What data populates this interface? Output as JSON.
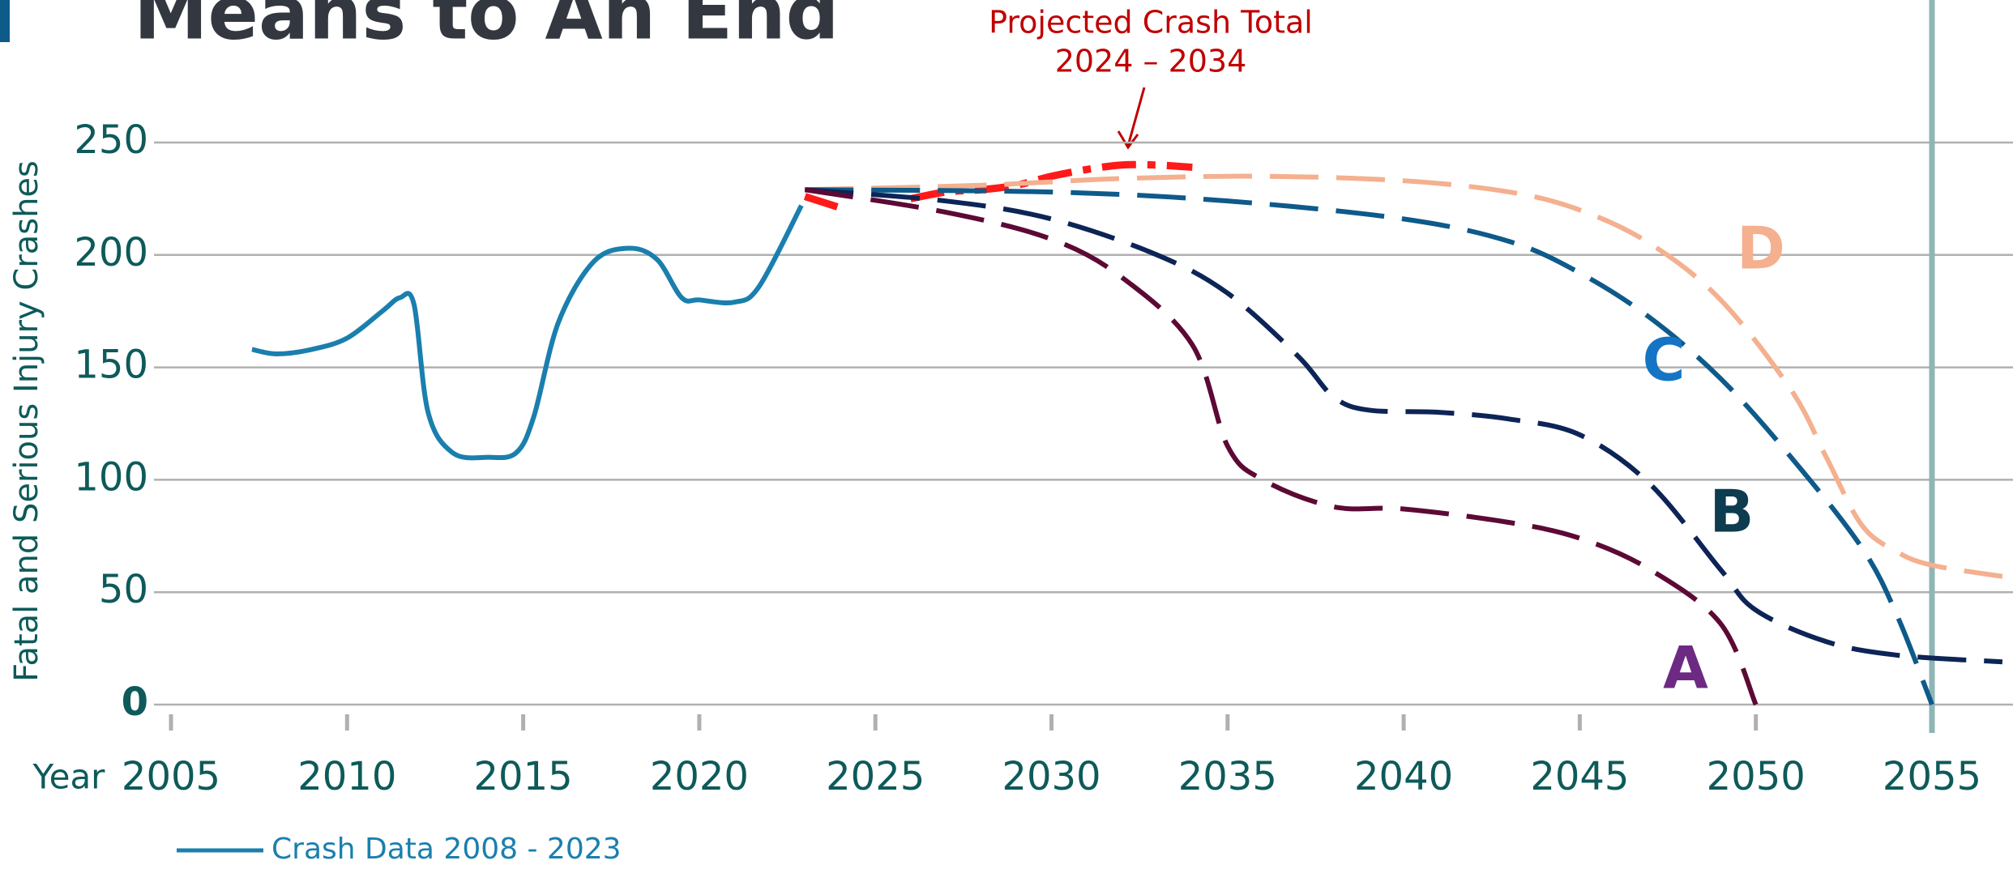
{
  "chart_data": {
    "type": "line",
    "title": "Means to An End",
    "ylabel": "Fatal and Serious Injury Crashes",
    "xlabel": "Year",
    "annotation": [
      "Projected Crash Total",
      "2024 – 2034"
    ],
    "xlim": [
      2005,
      2057
    ],
    "ylim": [
      0,
      250
    ],
    "xticks": [
      2005,
      2010,
      2015,
      2020,
      2025,
      2030,
      2035,
      2040,
      2045,
      2050,
      2055
    ],
    "yticks": [
      0,
      50,
      100,
      150,
      200,
      250
    ],
    "grid": true,
    "vline_x": 2055,
    "series": [
      {
        "name": "Crash Data 2008 - 2023",
        "color": "#1a7fae",
        "style": "solid",
        "legend": true,
        "x": [
          2007.3,
          2008,
          2009,
          2010,
          2011,
          2011.5,
          2011.9,
          2012.3,
          2013,
          2014,
          2014.8,
          2015.3,
          2016,
          2017,
          2018,
          2018.8,
          2019.5,
          2020,
          2021,
          2021.7,
          2022.9
        ],
        "values": [
          158,
          156,
          158,
          163,
          175,
          181,
          178,
          130,
          112,
          110,
          112,
          128,
          170,
          197,
          203,
          198,
          181,
          180,
          179,
          186,
          222
        ]
      },
      {
        "color": "#ff1a1a",
        "style": "dashdot",
        "x": [
          2023,
          2024,
          2025,
          2026,
          2027,
          2028,
          2029,
          2030,
          2031,
          2032,
          2033,
          2034
        ],
        "values": [
          226,
          221,
          null,
          225,
          228,
          229,
          231,
          235,
          238,
          240,
          240,
          239
        ]
      },
      {
        "name": "D",
        "color": "#f4b08f",
        "label_color": "#f4b08f",
        "style": "dashed",
        "x": [
          2023,
          2028,
          2032,
          2036,
          2040,
          2043,
          2045,
          2047,
          2049,
          2051,
          2052,
          2053,
          2054,
          2055,
          2057
        ],
        "values": [
          229,
          231,
          234,
          235,
          233,
          228,
          220,
          205,
          180,
          140,
          110,
          80,
          68,
          62,
          57
        ]
      },
      {
        "name": "C",
        "color": "#0e5a8a",
        "label_color": "#1575c4",
        "style": "dashed",
        "x": [
          2023,
          2030,
          2035,
          2040,
          2043,
          2045,
          2047,
          2049,
          2051,
          2053,
          2054,
          2055
        ],
        "values": [
          229,
          228,
          224,
          216,
          206,
          192,
          172,
          145,
          110,
          70,
          40,
          0
        ]
      },
      {
        "name": "B",
        "color": "#0d2456",
        "label_color": "#0d3b4f",
        "style": "dashed",
        "x": [
          2023,
          2027,
          2030,
          2033,
          2035,
          2037,
          2038,
          2039,
          2041,
          2043,
          2045,
          2047,
          2049,
          2050,
          2052,
          2054,
          2057
        ],
        "values": [
          229,
          224,
          216,
          200,
          183,
          155,
          137,
          131,
          130,
          127,
          120,
          98,
          60,
          42,
          28,
          22,
          19
        ]
      },
      {
        "name": "A",
        "color": "#5c0a35",
        "label_color": "#6d2a82",
        "style": "dashed",
        "x": [
          2023,
          2027,
          2030,
          2032,
          2034,
          2035,
          2036,
          2038,
          2040,
          2043,
          2045,
          2047,
          2049,
          2050
        ],
        "values": [
          229,
          219,
          207,
          190,
          160,
          115,
          100,
          88,
          87,
          81,
          74,
          60,
          36,
          0
        ]
      }
    ]
  }
}
